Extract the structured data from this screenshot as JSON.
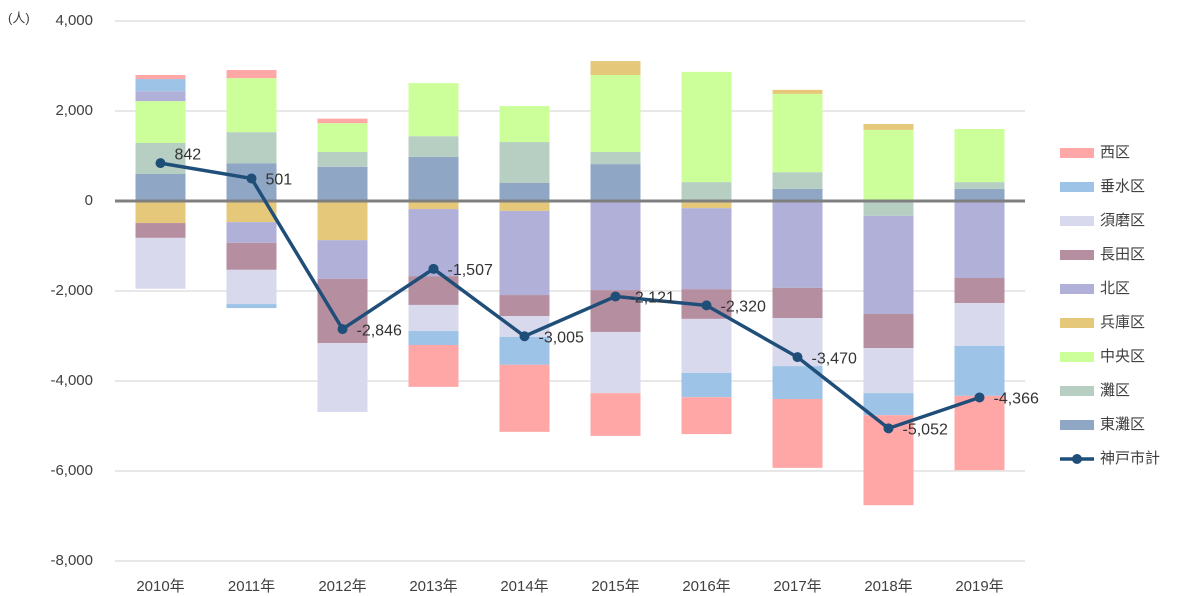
{
  "chart_data": {
    "type": "bar",
    "stacked": true,
    "unit_label": "(人)",
    "categories": [
      "2010年",
      "2011年",
      "2012年",
      "2013年",
      "2014年",
      "2015年",
      "2016年",
      "2017年",
      "2018年",
      "2019年"
    ],
    "ylim": [
      -8000,
      4000
    ],
    "yticks": [
      {
        "value": -8000,
        "label": "-8,000"
      },
      {
        "value": -6000,
        "label": "-6,000"
      },
      {
        "value": -4000,
        "label": "-4,000"
      },
      {
        "value": -2000,
        "label": "-2,000"
      },
      0,
      {
        "value": 2000,
        "label": "2,000"
      },
      {
        "value": 4000,
        "label": "4,000"
      }
    ],
    "grid": true,
    "legend": "right",
    "series": [
      {
        "name": "西区",
        "color": "#ffa7a7",
        "values": [
          90,
          180,
          100,
          -930,
          -1490,
          -950,
          -820,
          -1530,
          -2000,
          -1650
        ]
      },
      {
        "name": "垂水区",
        "color": "#9dc3e6",
        "values": [
          270,
          -90,
          0,
          -310,
          -620,
          0,
          -540,
          -730,
          -490,
          -1110
        ]
      },
      {
        "name": "須磨区",
        "color": "#d9d9ee",
        "values": [
          -1130,
          -760,
          -1530,
          -580,
          -460,
          -1360,
          -1200,
          -1070,
          -1000,
          -950
        ]
      },
      {
        "name": "長田区",
        "color": "#b58ea0",
        "values": [
          -330,
          -600,
          -1430,
          -640,
          -470,
          -930,
          -660,
          -670,
          -760,
          -560
        ]
      },
      {
        "name": "北区",
        "color": "#b0b0d9",
        "values": [
          220,
          -460,
          -860,
          -1490,
          -1870,
          -1980,
          -1800,
          -1930,
          -2180,
          -1710
        ]
      },
      {
        "name": "兵庫区",
        "color": "#e6c87a",
        "values": [
          -490,
          -470,
          -870,
          -180,
          -220,
          310,
          -160,
          90,
          130,
          0
        ]
      },
      {
        "name": "中央区",
        "color": "#ccff99",
        "values": [
          930,
          1200,
          640,
          1180,
          800,
          1710,
          2450,
          1740,
          1580,
          1180
        ]
      },
      {
        "name": "灘区",
        "color": "#b7cfc2",
        "values": [
          690,
          690,
          330,
          460,
          910,
          270,
          420,
          370,
          -330,
          150
        ]
      },
      {
        "name": "東灘区",
        "color": "#8fa7c4",
        "values": [
          600,
          840,
          760,
          980,
          400,
          820,
          0,
          270,
          0,
          270
        ]
      },
      {
        "name": "神戸市計",
        "type": "line",
        "color": "#1f4e79",
        "values": [
          842,
          501,
          -2846,
          -1507,
          -3005,
          -2121,
          -2320,
          -3470,
          -5052,
          -4366
        ],
        "value_labels": [
          "842",
          "501",
          "-2,846",
          "-1,507",
          "-3,005",
          "-2,121",
          "-2,320",
          "-3,470",
          "-5,052",
          "-4,366"
        ]
      }
    ]
  }
}
